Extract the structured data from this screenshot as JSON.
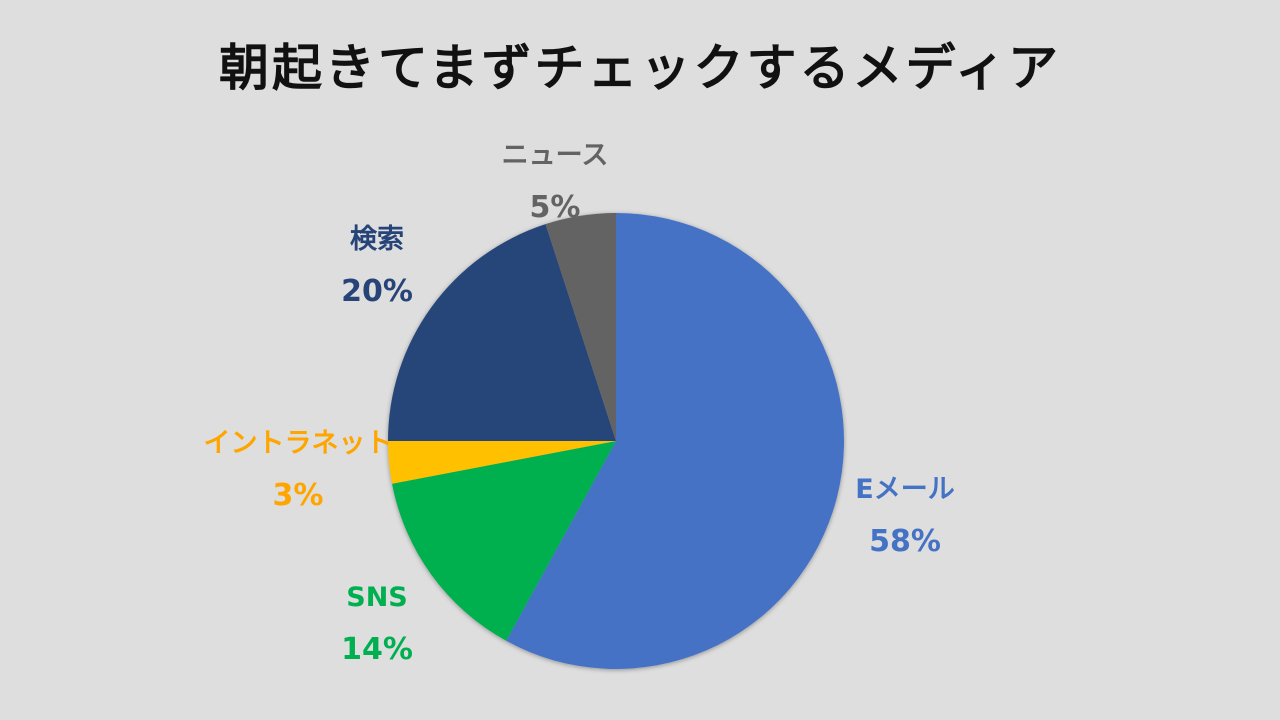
{
  "title": "朝起きてまずチェックするメディア",
  "chart_data": {
    "type": "pie",
    "title": "朝起きてまずチェックするメディア",
    "start_angle_deg": 0,
    "direction": "clockwise",
    "categories": [
      "Eメール",
      "SNS",
      "イントラネット",
      "検索",
      "ニュース"
    ],
    "values": [
      58,
      14,
      3,
      20,
      5
    ],
    "labels": [
      "58%",
      "14%",
      "3%",
      "20%",
      "5%"
    ],
    "colors": [
      "#4472c4",
      "#00b050",
      "#ffc000",
      "#264478",
      "#636363"
    ],
    "label_colors": [
      "#4472c4",
      "#00b050",
      "#ffa500",
      "#264478",
      "#636363"
    ],
    "legend": "none (data labels outside)"
  },
  "labels": {
    "email": {
      "name": "Eメール",
      "pct": "58%"
    },
    "sns": {
      "name": "SNS",
      "pct": "14%"
    },
    "intranet": {
      "name": "イントラネット",
      "pct": "3%"
    },
    "search": {
      "name": "検索",
      "pct": "20%"
    },
    "news": {
      "name": "ニュース",
      "pct": "5%"
    }
  }
}
